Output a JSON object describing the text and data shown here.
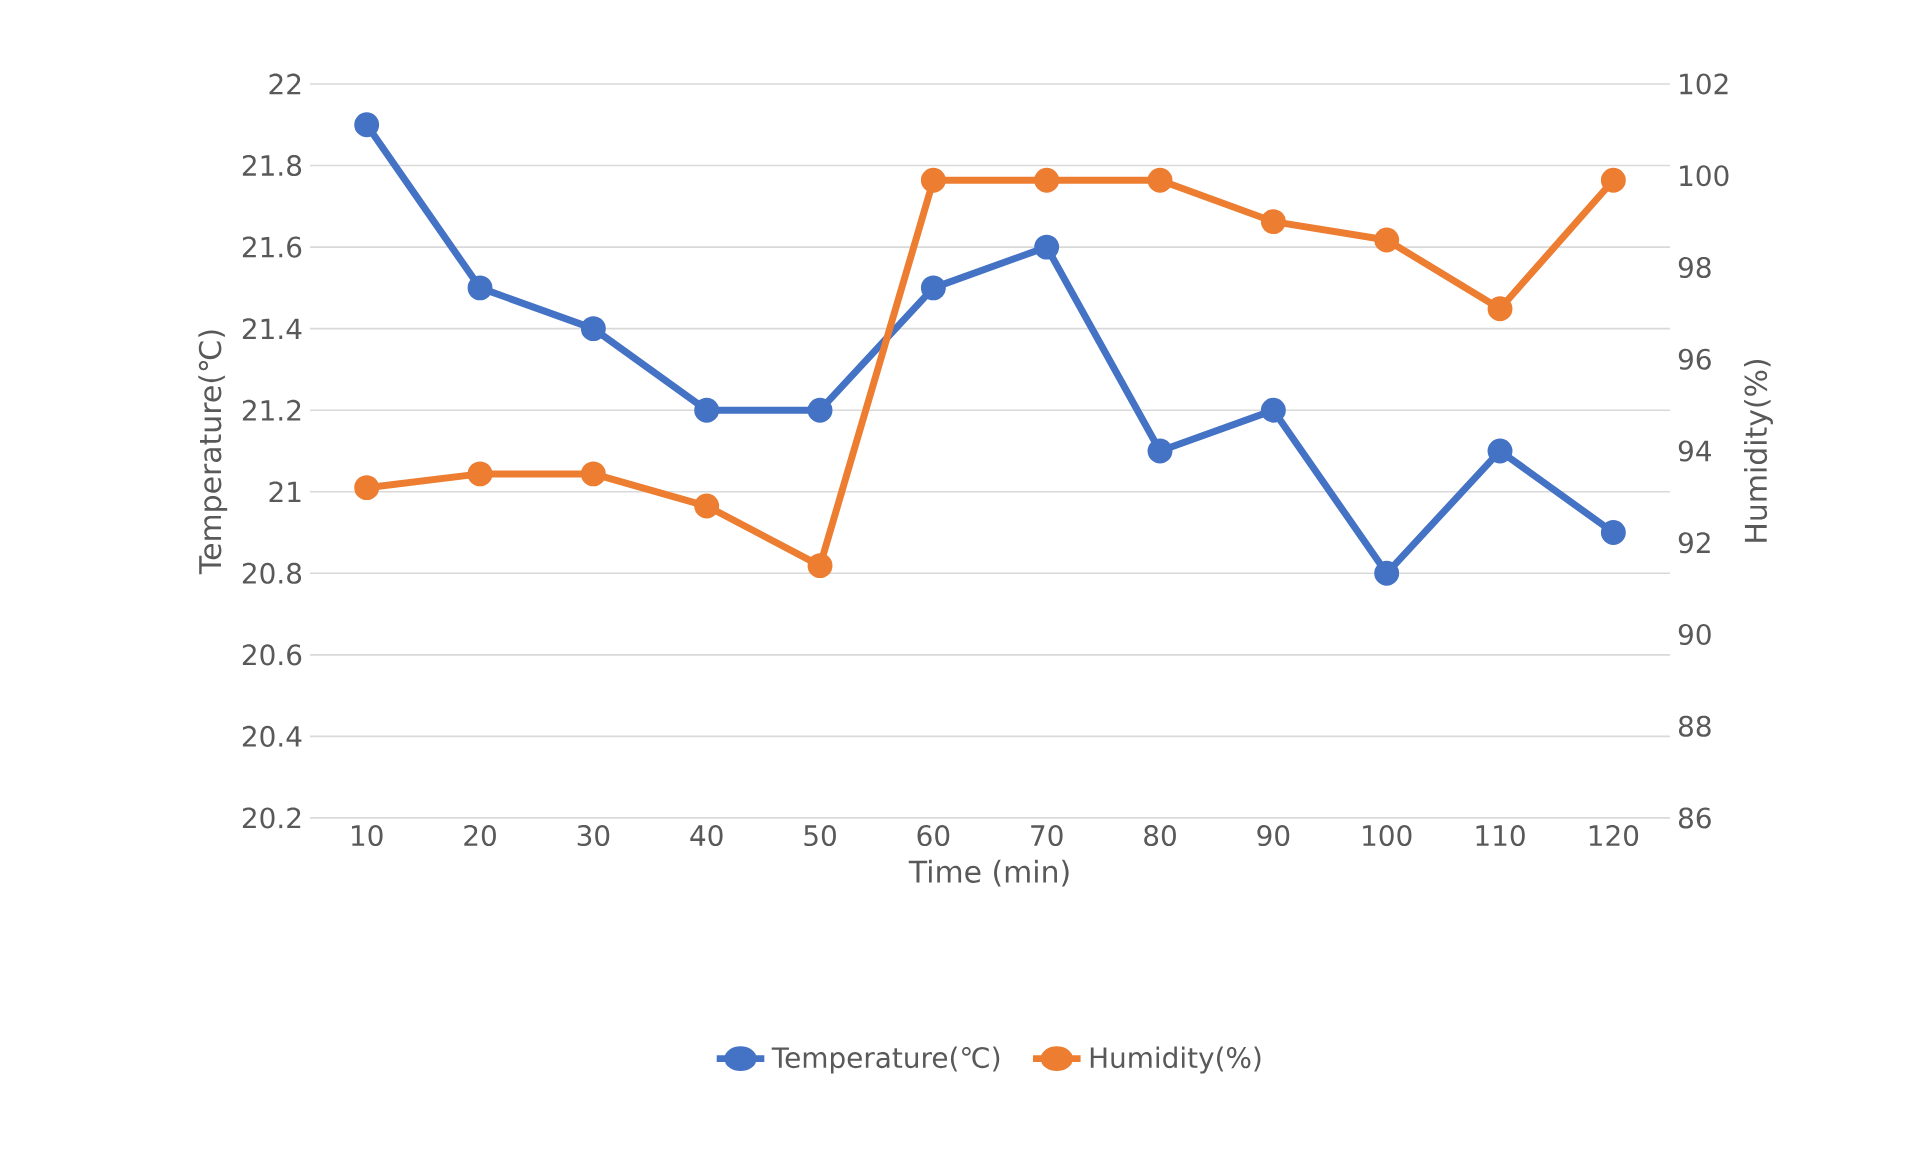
{
  "chart_data": {
    "type": "line",
    "xlabel": "Time (min)",
    "ylabel": "Temperature(℃)",
    "y2label": "Humidity(%)",
    "categories": [
      "10",
      "20",
      "30",
      "40",
      "50",
      "60",
      "70",
      "80",
      "90",
      "100",
      "110",
      "120"
    ],
    "series": [
      {
        "name": "Temperature(℃)",
        "color": "#4472c4",
        "values": [
          21.9,
          21.5,
          21.4,
          21.2,
          21.2,
          21.5,
          21.6,
          21.1,
          21.2,
          20.8,
          21.1,
          20.9
        ]
      },
      {
        "name": "Humidity(%)",
        "color": "#ed7d31",
        "axis": "y2",
        "values": [
          93.2,
          93.5,
          93.5,
          92.8,
          91.5,
          99.9,
          99.9,
          99.9,
          99.0,
          98.6,
          97.1,
          99.9
        ]
      }
    ],
    "ylim": [
      20.2,
      22
    ],
    "yticks": [
      20.2,
      20.4,
      20.6,
      20.8,
      21,
      21.2,
      21.4,
      21.6,
      21.8,
      22
    ],
    "y2lim": [
      86,
      102
    ],
    "y2ticks": [
      86,
      88,
      90,
      92,
      94,
      96,
      98,
      100,
      102
    ],
    "grid": "y",
    "legend": "bottom",
    "marker": "circle",
    "line_style": "solid"
  }
}
